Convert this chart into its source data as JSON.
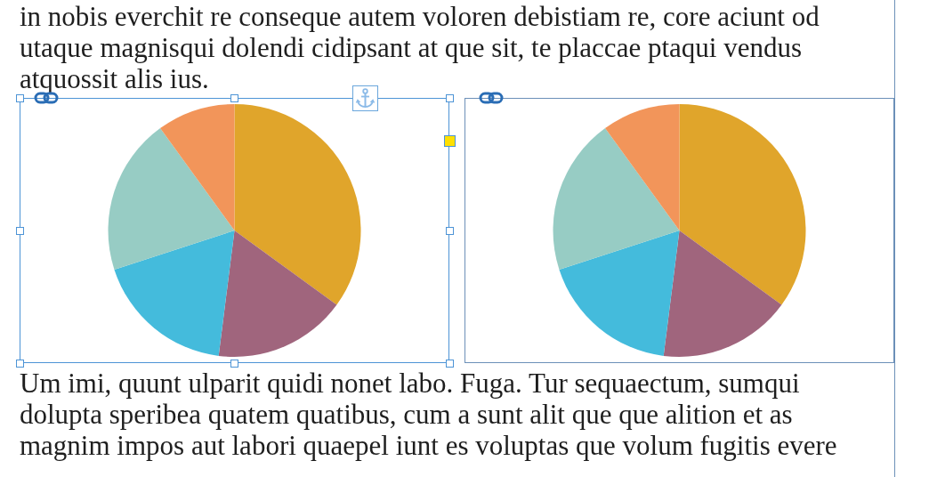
{
  "chart_data": [
    {
      "type": "other",
      "annotations": [
        "in nobis everchit re conseque autem voloren debistiam re, core aciunt od",
        "utaque magnisqui dolendi cidipsant at que sit, te placcae ptaqui vendus",
        "atquossit alis ius."
      ]
    },
    {
      "type": "pie",
      "categories": [
        null,
        null,
        null,
        null,
        null
      ],
      "values": [
        35,
        17,
        18,
        20,
        10
      ],
      "colors": [
        "#e0a52b",
        "#a0657d",
        "#44bbdc",
        "#97ccc4",
        "#f2955a"
      ]
    },
    {
      "type": "pie",
      "categories": [
        null,
        null,
        null,
        null,
        null
      ],
      "values": [
        35,
        17,
        18,
        20,
        10
      ],
      "colors": [
        "#e0a52b",
        "#a0657d",
        "#44bbdc",
        "#97ccc4",
        "#f2955a"
      ]
    },
    {
      "type": "other",
      "annotations": [
        "Um imi, quunt ulparit quidi nonet labo. Fuga. Tur sequaectum, sumqui",
        "dolupta speribea quatem quatibus, cum a sunt alit que que alition et as",
        "magnim impos aut labori quaepel iunt es voluptas que volum fugitis evere"
      ]
    }
  ]
}
